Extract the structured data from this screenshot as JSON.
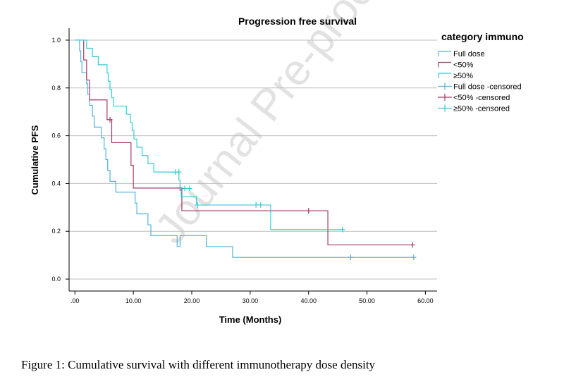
{
  "caption": "Figure 1: Cumulative survival with different immunotherapy dose density",
  "watermark": "Journal Pre-proof",
  "colors": {
    "full_dose": "#4fb3dc",
    "lt50": "#a23a66",
    "ge50": "#33ccd6",
    "grid": "#bdbdbd",
    "axis": "#000000"
  },
  "chart_data": {
    "type": "line",
    "subtype": "kaplan-meier-step",
    "title": "Progression free survival",
    "xlabel": "Time (Months)",
    "ylabel": "Cumulative PFS",
    "xlim": [
      -1,
      62
    ],
    "ylim": [
      -0.05,
      1.05
    ],
    "x_ticks": [
      0,
      10,
      20,
      30,
      40,
      50,
      60
    ],
    "x_tick_labels": [
      ".00",
      "10.00",
      "20.00",
      "30.00",
      "40.00",
      "50.00",
      "60.00"
    ],
    "y_ticks": [
      0,
      0.2,
      0.4,
      0.6,
      0.8,
      1.0
    ],
    "y_tick_labels": [
      "0.0",
      "0.2",
      "0.4",
      "0.6",
      "0.8",
      "1.0"
    ],
    "grid": "horizontal",
    "legend": {
      "title": "category immuno",
      "position": "right",
      "entries": [
        {
          "label": "Full dose",
          "series": 0,
          "kind": "line"
        },
        {
          "label": "<50%",
          "series": 1,
          "kind": "line"
        },
        {
          "label": "≥50%",
          "series": 2,
          "kind": "line"
        },
        {
          "label": "Full dose -censored",
          "series": 0,
          "kind": "censor"
        },
        {
          "label": "<50% -censored",
          "series": 1,
          "kind": "censor"
        },
        {
          "label": "≥50% -censored",
          "series": 2,
          "kind": "censor"
        }
      ]
    },
    "series": [
      {
        "name": "Full dose",
        "color_key": "full_dose",
        "steps": [
          [
            0,
            1.0
          ],
          [
            0.8,
            0.955
          ],
          [
            1.0,
            0.91
          ],
          [
            1.2,
            0.864
          ],
          [
            2.0,
            0.818
          ],
          [
            2.2,
            0.773
          ],
          [
            2.5,
            0.727
          ],
          [
            3.0,
            0.682
          ],
          [
            3.3,
            0.636
          ],
          [
            4.5,
            0.591
          ],
          [
            5.0,
            0.545
          ],
          [
            5.3,
            0.5
          ],
          [
            5.6,
            0.455
          ],
          [
            6.0,
            0.409
          ],
          [
            7.0,
            0.364
          ],
          [
            10.3,
            0.318
          ],
          [
            10.6,
            0.273
          ],
          [
            12.5,
            0.227
          ],
          [
            13.0,
            0.182
          ],
          [
            17.5,
            0.136
          ],
          [
            18.0,
            0.182
          ],
          [
            22.5,
            0.136
          ],
          [
            27.0,
            0.091
          ],
          [
            58.0,
            0.091
          ]
        ],
        "censored": [
          [
            47.2,
            0.091
          ],
          [
            58.0,
            0.091
          ]
        ]
      },
      {
        "name": "<50%",
        "color_key": "lt50",
        "steps": [
          [
            0,
            1.0
          ],
          [
            1.5,
            0.917
          ],
          [
            2.0,
            0.833
          ],
          [
            2.5,
            0.75
          ],
          [
            5.5,
            0.667
          ],
          [
            6.3,
            0.571
          ],
          [
            9.6,
            0.476
          ],
          [
            10.0,
            0.381
          ],
          [
            18.3,
            0.286
          ],
          [
            43.3,
            0.143
          ],
          [
            58.0,
            0.143
          ]
        ],
        "censored": [
          [
            6.0,
            0.667
          ],
          [
            18.0,
            0.381
          ],
          [
            40.0,
            0.286
          ],
          [
            57.8,
            0.143
          ]
        ]
      },
      {
        "name": "≥50%",
        "color_key": "ge50",
        "steps": [
          [
            0,
            1.0
          ],
          [
            2.0,
            0.966
          ],
          [
            3.0,
            0.931
          ],
          [
            4.0,
            0.897
          ],
          [
            5.5,
            0.862
          ],
          [
            5.7,
            0.828
          ],
          [
            6.0,
            0.793
          ],
          [
            6.3,
            0.759
          ],
          [
            6.6,
            0.724
          ],
          [
            8.8,
            0.69
          ],
          [
            9.5,
            0.655
          ],
          [
            9.8,
            0.621
          ],
          [
            10.1,
            0.586
          ],
          [
            10.6,
            0.552
          ],
          [
            11.5,
            0.517
          ],
          [
            12.5,
            0.483
          ],
          [
            13.5,
            0.448
          ],
          [
            17.8,
            0.414
          ],
          [
            18.0,
            0.379
          ],
          [
            18.2,
            0.345
          ],
          [
            20.8,
            0.31
          ],
          [
            33.5,
            0.207
          ],
          [
            46.0,
            0.207
          ]
        ],
        "censored": [
          [
            17.2,
            0.448
          ],
          [
            17.8,
            0.448
          ],
          [
            18.8,
            0.379
          ],
          [
            19.6,
            0.379
          ],
          [
            21.0,
            0.31
          ],
          [
            31.0,
            0.31
          ],
          [
            31.8,
            0.31
          ],
          [
            45.8,
            0.207
          ]
        ]
      }
    ]
  }
}
